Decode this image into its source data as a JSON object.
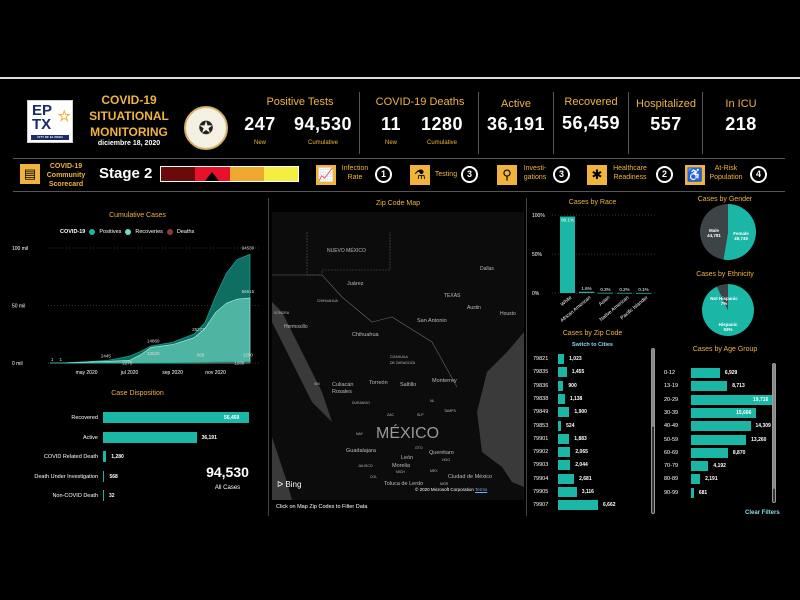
{
  "header": {
    "logo_text": "EPTX",
    "logo_subtitle": "CITY OF EL PASO",
    "title_lines": [
      "COVID-19",
      "SITUATIONAL",
      "MONITORING"
    ],
    "date": "diciembre 18, 2020",
    "seal_text": "EL PASO COUNTY TEXAS",
    "positive_tests": {
      "title": "Positive Tests",
      "new": "247",
      "new_label": "New",
      "cumulative": "94,530",
      "cumulative_label": "Cumulative"
    },
    "deaths": {
      "title": "COVID-19 Deaths",
      "new": "11",
      "new_label": "New",
      "cumulative": "1280",
      "cumulative_label": "Cumulative"
    },
    "active": {
      "title": "Active",
      "value": "36,191"
    },
    "recovered": {
      "title": "Recovered",
      "value": "56,459"
    },
    "hospitalized": {
      "title": "Hospitalized",
      "value": "557"
    },
    "icu": {
      "title": "In ICU",
      "value": "218"
    }
  },
  "scorecard": {
    "label_lines": [
      "COVID-19",
      "Community",
      "Scorecard"
    ],
    "stage": "Stage 2",
    "gauge_colors": [
      "#6b0a0a",
      "#e8102a",
      "#f0a830",
      "#f4ee40"
    ],
    "items": [
      {
        "label_lines": [
          "Infection",
          "Rate"
        ],
        "value": "1",
        "icon": "chart-line-icon"
      },
      {
        "label_lines": [
          "Testing"
        ],
        "value": "3",
        "icon": "flask-icon"
      },
      {
        "label_lines": [
          "Investi-",
          "gations"
        ],
        "value": "3",
        "icon": "magnifier-icon"
      },
      {
        "label_lines": [
          "Healthcare",
          "Readiness"
        ],
        "value": "2",
        "icon": "medical-star-icon"
      },
      {
        "label_lines": [
          "At-Risk",
          "Population"
        ],
        "value": "4",
        "icon": "wheelchair-icon"
      }
    ]
  },
  "colors": {
    "accent": "#1ab6a6",
    "gold": "#f0b43c",
    "recoveries": "#6fd8c8",
    "deaths": "#8b3a3a"
  },
  "chart_data": [
    {
      "type": "area",
      "title": "Cumulative Cases",
      "legend_title": "COVID-19",
      "legend": [
        "Positives",
        "Recoveries",
        "Deaths"
      ],
      "legend_placement": "top",
      "yticks": [
        "0 mil",
        "50 mil",
        "100 mil"
      ],
      "ylim": [
        0,
        100
      ],
      "xticks": [
        {
          "label": "may 2020",
          "x": 5
        },
        {
          "label": "jul 2020",
          "x": 7
        },
        {
          "label": "sep 2020",
          "x": 9
        },
        {
          "label": "nov 2020",
          "x": 11
        }
      ],
      "x": [
        3.3,
        4,
        5,
        6,
        7,
        7.5,
        8,
        9,
        10,
        10.5,
        11,
        11.5,
        12,
        12.6
      ],
      "series": [
        {
          "name": "Positives",
          "values": [
            0.001,
            0.3,
            1.2,
            2.4,
            6,
            10,
            14.9,
            18,
            25.3,
            35,
            58,
            78,
            90,
            94.53
          ]
        },
        {
          "name": "Recoveries",
          "values": [
            0,
            0.1,
            0.8,
            1.5,
            2.3,
            7,
            13.5,
            16,
            22,
            30,
            44,
            52,
            55.5,
            56.6
          ]
        },
        {
          "name": "Deaths",
          "values": [
            0,
            0,
            0.03,
            0.05,
            0.1,
            0.2,
            0.3,
            0.45,
            0.67,
            0.8,
            1.0,
            1.1,
            1.2,
            1.28
          ]
        }
      ],
      "annotations": [
        {
          "text": "1",
          "x": 3.4,
          "y": 1
        },
        {
          "text": "1",
          "x": 3.8,
          "y": 1
        },
        {
          "text": "2445",
          "x": 5.9,
          "y": 4
        },
        {
          "text": "2275",
          "x": 6.9,
          "y": -2
        },
        {
          "text": "14869",
          "x": 8.1,
          "y": 17
        },
        {
          "text": "13520",
          "x": 8.1,
          "y": 6
        },
        {
          "text": "25277",
          "x": 10.2,
          "y": 27
        },
        {
          "text": "669",
          "x": 10.3,
          "y": 5
        },
        {
          "text": "94530",
          "x": 12.5,
          "y": 98
        },
        {
          "text": "56615",
          "x": 12.5,
          "y": 60
        },
        {
          "text": "1280",
          "x": 12.5,
          "y": 5
        },
        {
          "text": "1280",
          "x": 12.1,
          "y": -2
        }
      ]
    },
    {
      "type": "bar",
      "title": "Case Disposition",
      "orientation": "horizontal",
      "categories": [
        "Recovered",
        "Active",
        "COVID Related Death",
        "Death Under Investigation",
        "Non-COVID Death"
      ],
      "values": [
        56459,
        36191,
        1280,
        568,
        32
      ],
      "labels": [
        "56,459",
        "36,191",
        "1,280",
        "568",
        "32"
      ]
    },
    {
      "type": "bar",
      "title": "Cases by Race",
      "categories": [
        "White",
        "African American",
        "Asian",
        "Native American",
        "Pacific Islander"
      ],
      "values": [
        98.1,
        1.6,
        0.3,
        0.2,
        0.1
      ],
      "labels": [
        "98.1%",
        "1.6%",
        "0.3%",
        "0.2%",
        "0.1%"
      ],
      "yticks": [
        "0%",
        "50%",
        "100%"
      ],
      "ylim": [
        0,
        100
      ]
    },
    {
      "type": "pie",
      "title": "Cases by Gender",
      "slices": [
        {
          "name": "Female",
          "value": 49749,
          "label": "49,749",
          "color": "#1ab6a6"
        },
        {
          "name": "Male",
          "value": 44781,
          "label": "44,781",
          "color": "#3c4448"
        }
      ]
    },
    {
      "type": "pie",
      "title": "Cases by Ethnicity",
      "slices": [
        {
          "name": "Hispanic",
          "value": 93,
          "label": "93%",
          "color": "#1ab6a6"
        },
        {
          "name": "Not Hispanic",
          "value": 7,
          "label": "7%",
          "color": "#3c4448"
        }
      ]
    },
    {
      "type": "bar",
      "title": "Cases  by Zip Code",
      "orientation": "horizontal",
      "categories": [
        "79821",
        "79835",
        "79836",
        "79838",
        "79849",
        "79853",
        "79901",
        "79902",
        "79903",
        "79904",
        "79905",
        "79907"
      ],
      "values": [
        1023,
        1455,
        900,
        1138,
        1900,
        524,
        1883,
        2065,
        2044,
        2681,
        3116,
        6662
      ],
      "labels": [
        "1,023",
        "1,455",
        "900",
        "1,138",
        "1,900",
        "524",
        "1,883",
        "2,065",
        "2,044",
        "2,681",
        "3,116",
        "6,662"
      ]
    },
    {
      "type": "bar",
      "title": "Cases  by Age Group",
      "orientation": "horizontal",
      "categories": [
        "0-12",
        "13-19",
        "20-29",
        "30-39",
        "40-49",
        "50-59",
        "60-69",
        "70-79",
        "80-89",
        "90-99"
      ],
      "values": [
        6929,
        8713,
        19716,
        15666,
        14309,
        13260,
        8870,
        4192,
        2191,
        681
      ],
      "labels": [
        "6,929",
        "8,713",
        "19,716",
        "15,666",
        "14,309",
        "13,260",
        "8,870",
        "4,192",
        "2,191",
        "681"
      ]
    }
  ],
  "disposition_total": {
    "value": "94,530",
    "label": "All Cases"
  },
  "zip_switch": "Switch to Cities",
  "clear_filters": "Clear Filters",
  "map": {
    "title": "Zip Code Map",
    "labels": [
      "NUEVO MÉXICO",
      "Juárez",
      "CHIHUAHUA",
      "SONORA",
      "Hermosillo",
      "Chihuahua",
      "TEXAS",
      "Dallas",
      "Austin",
      "Housto",
      "San Antonio",
      "COAHUILA",
      "DE ZARAGOZA",
      "Culiacán",
      "Rosales",
      "Torreón",
      "Saltillo",
      "Monterrey",
      "SIN",
      "DURANGO",
      "NL",
      "ZAC",
      "SLP",
      "TAMPS",
      "MÉXICO",
      "NAY",
      "Guadalajara",
      "GTO",
      "León",
      "Querétaro",
      "HGO",
      "JALISCO",
      "Morelia",
      "MICH",
      "MEX",
      "Ciudad de México",
      "COL",
      "Toluca de Lerdo",
      "MOR"
    ],
    "bing": "Bing",
    "copyright": "© 2020 Microsoft Corporation",
    "terms": "Terms",
    "footer": "Click on Map Zip Codes  to Filter Data"
  }
}
